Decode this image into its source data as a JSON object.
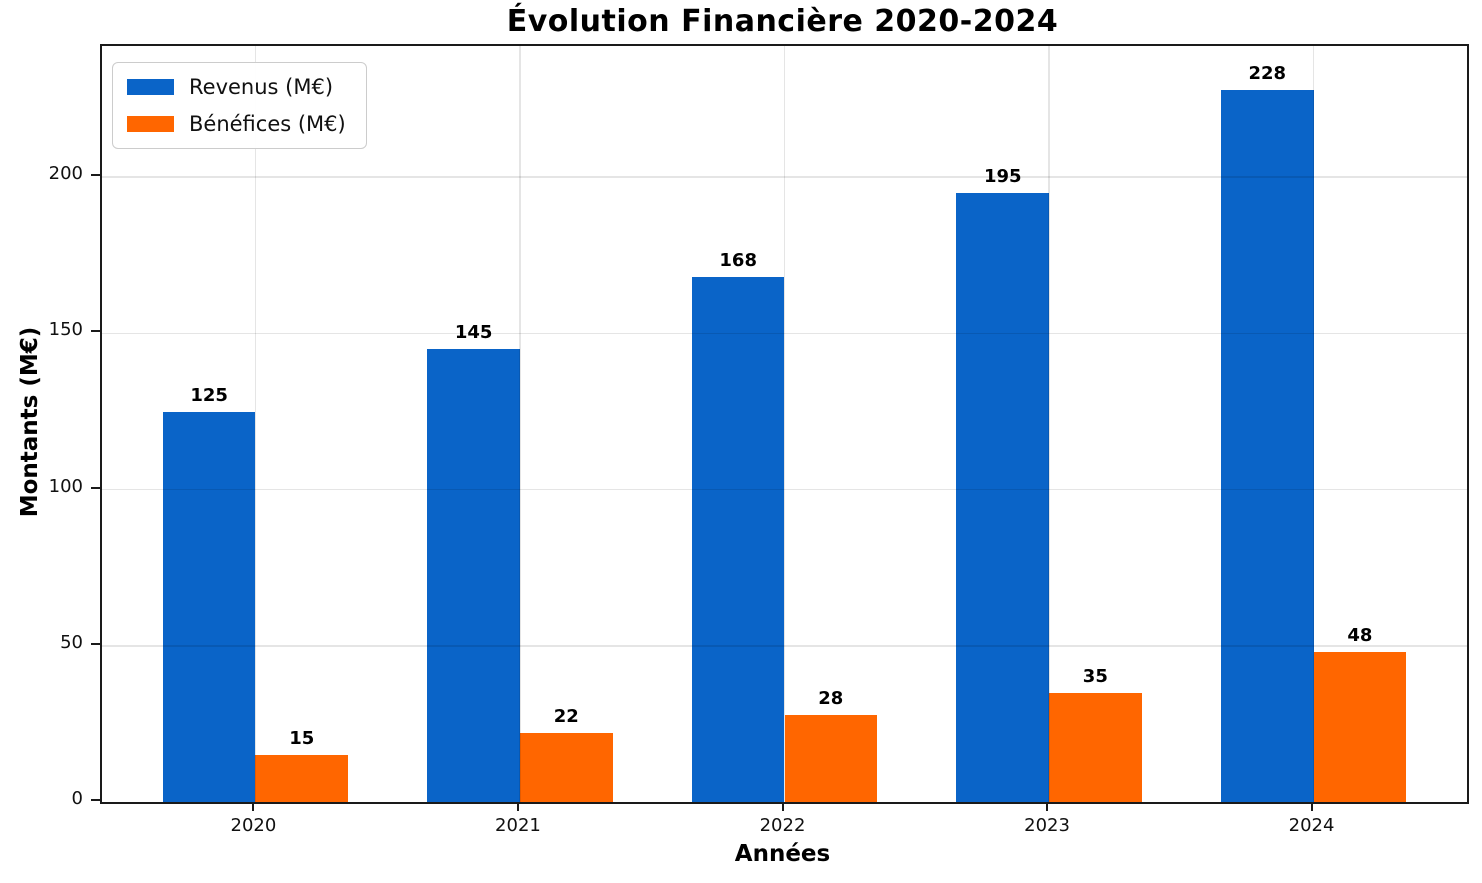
{
  "figure": {
    "background_color": "#ffffff",
    "text_color": "#111111",
    "spine_color": "#1a1a1a",
    "grid_color": "rgba(0,0,0,0.10)"
  },
  "chart_data": {
    "type": "bar",
    "title": "Évolution Financière 2020-2024",
    "xlabel": "Années",
    "ylabel": "Montants (M€)",
    "categories": [
      "2020",
      "2021",
      "2022",
      "2023",
      "2024"
    ],
    "series": [
      {
        "key": "revenus",
        "name": "Revenus (M€)",
        "color": "#0a64c8",
        "values": [
          125,
          145,
          168,
          195,
          228
        ]
      },
      {
        "key": "benefices",
        "name": "Bénéfices (M€)",
        "color": "#ff6600",
        "values": [
          15,
          22,
          28,
          35,
          48
        ]
      }
    ],
    "ylim": [
      0,
      242
    ],
    "yticks": [
      0,
      50,
      100,
      150,
      200
    ],
    "grid": true,
    "grid_axes": "both",
    "legend_position": "upper left",
    "value_labels": true
  }
}
